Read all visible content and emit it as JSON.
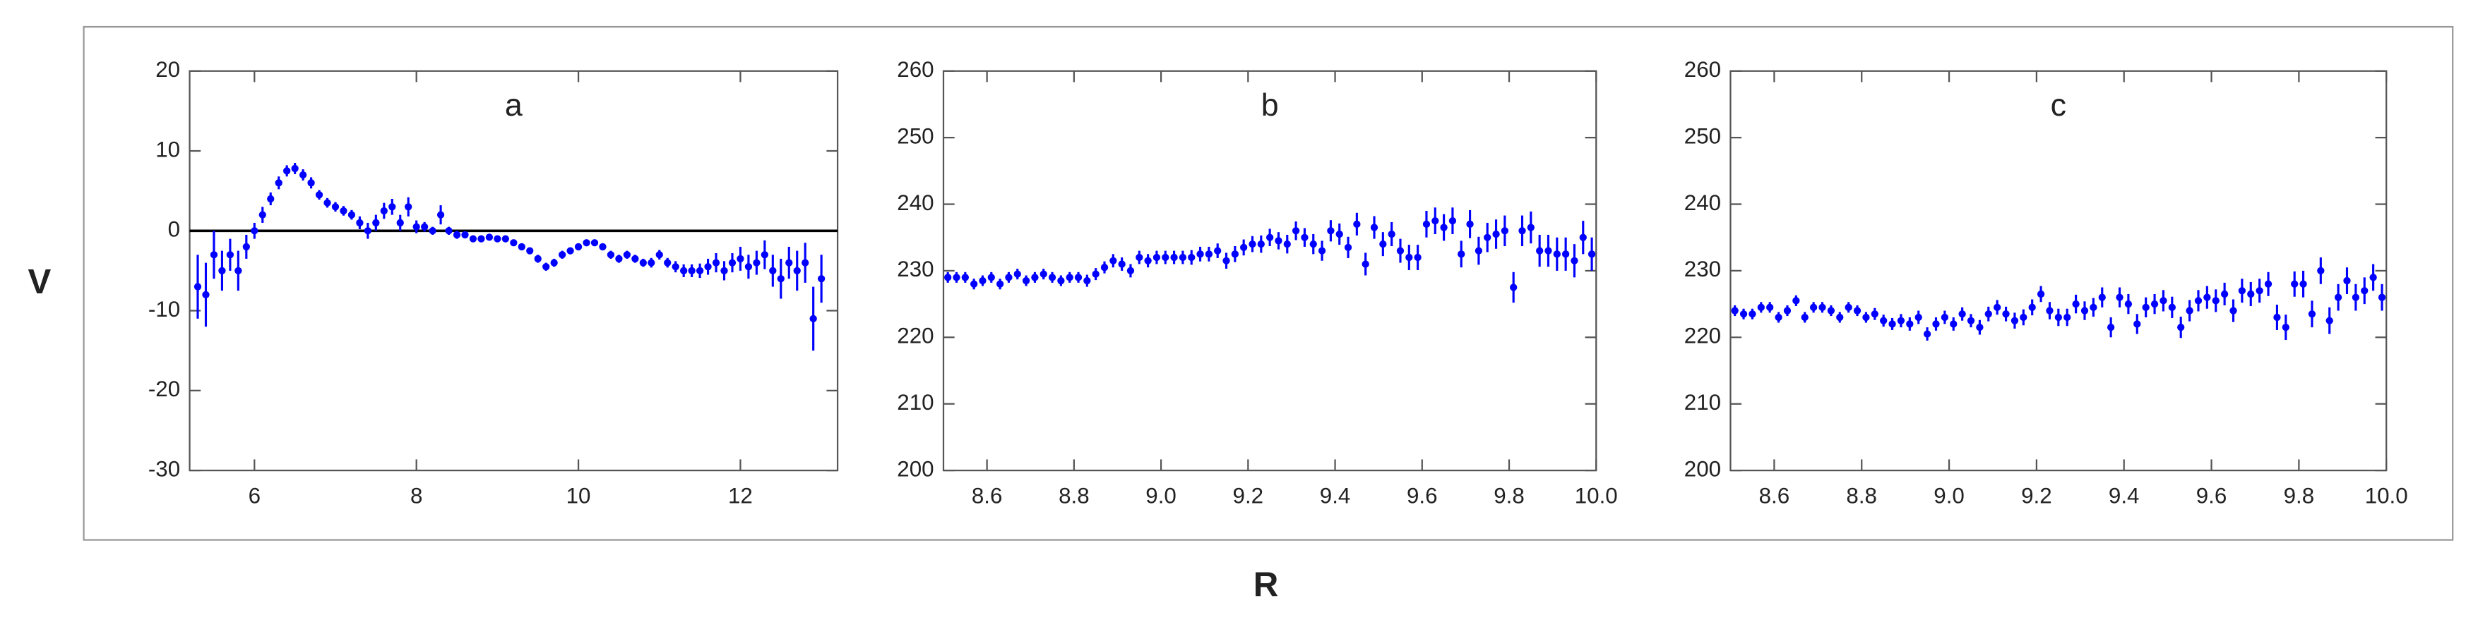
{
  "xlabel": "R",
  "ylabel": "V",
  "chart_data": [
    {
      "type": "scatter",
      "title": "a",
      "xlim": [
        5.2,
        13.2
      ],
      "ylim": [
        -30,
        20
      ],
      "xticks": [
        6,
        8,
        10,
        12
      ],
      "yticks": [
        -30,
        -20,
        -10,
        0,
        10,
        20
      ],
      "reference_line": 0,
      "reference_color": "#000000",
      "x": [
        5.3,
        5.4,
        5.5,
        5.6,
        5.7,
        5.8,
        5.9,
        6.0,
        6.1,
        6.2,
        6.3,
        6.4,
        6.5,
        6.6,
        6.7,
        6.8,
        6.9,
        7.0,
        7.1,
        7.2,
        7.3,
        7.4,
        7.5,
        7.6,
        7.7,
        7.8,
        7.9,
        8.0,
        8.1,
        8.2,
        8.3,
        8.4,
        8.5,
        8.6,
        8.7,
        8.8,
        8.9,
        9.0,
        9.1,
        9.2,
        9.3,
        9.4,
        9.5,
        9.6,
        9.7,
        9.8,
        9.9,
        10.0,
        10.1,
        10.2,
        10.3,
        10.4,
        10.5,
        10.6,
        10.7,
        10.8,
        10.9,
        11.0,
        11.1,
        11.2,
        11.3,
        11.4,
        11.5,
        11.6,
        11.7,
        11.8,
        11.9,
        12.0,
        12.1,
        12.2,
        12.3,
        12.4,
        12.5,
        12.6,
        12.7,
        12.8,
        12.9,
        13.0
      ],
      "series": [
        {
          "color": "#0000ff",
          "values": [
            -7,
            -8,
            -3,
            -5,
            -3,
            -5,
            -2,
            0,
            2,
            4,
            6,
            7.5,
            7.8,
            7,
            6,
            4.5,
            3.5,
            3,
            2.5,
            2,
            1,
            0,
            1,
            2.5,
            3,
            1,
            3,
            0.5,
            0.5,
            0,
            2,
            0,
            -0.5,
            -0.5,
            -1,
            -1,
            -0.8,
            -1,
            -1,
            -1.5,
            -2,
            -2.5,
            -3.5,
            -4.5,
            -4,
            -3,
            -2.5,
            -2,
            -1.5,
            -1.5,
            -2,
            -3,
            -3.5,
            -3,
            -3.5,
            -4,
            -4,
            -3,
            -4,
            -4.5,
            -5,
            -5,
            -5,
            -4.5,
            -4,
            -5,
            -4,
            -3.5,
            -4.5,
            -4,
            -3,
            -5,
            -6,
            -4,
            -5,
            -4,
            -11,
            -6
          ],
          "errors": [
            4,
            4,
            3,
            2.5,
            2,
            2.5,
            1.5,
            1,
            1,
            0.8,
            0.8,
            0.7,
            0.7,
            0.7,
            0.7,
            0.6,
            0.6,
            0.6,
            0.6,
            0.6,
            0.8,
            1,
            1,
            1,
            1,
            1,
            1.2,
            0.8,
            0.6,
            0.5,
            1.2,
            0.5,
            0.5,
            0.4,
            0.4,
            0.4,
            0.4,
            0.4,
            0.4,
            0.4,
            0.4,
            0.4,
            0.5,
            0.5,
            0.5,
            0.5,
            0.4,
            0.4,
            0.4,
            0.4,
            0.4,
            0.5,
            0.5,
            0.5,
            0.5,
            0.5,
            0.6,
            0.6,
            0.6,
            0.7,
            0.8,
            0.8,
            0.9,
            1,
            1.2,
            1.2,
            1.2,
            1.5,
            1.5,
            1.5,
            1.8,
            2,
            2.5,
            2,
            2.5,
            2.5,
            4,
            3
          ]
        }
      ]
    },
    {
      "type": "scatter",
      "title": "b",
      "xlim": [
        8.5,
        10.0
      ],
      "ylim": [
        200,
        260
      ],
      "xticks": [
        8.6,
        8.8,
        {
          "value": 9,
          "label": "9.0"
        },
        9.2,
        9.4,
        9.6,
        9.8,
        {
          "value": 10,
          "label": "10.0"
        }
      ],
      "yticks": [
        200,
        210,
        220,
        230,
        240,
        250,
        260
      ],
      "x": [
        8.51,
        8.53,
        8.55,
        8.57,
        8.59,
        8.61,
        8.63,
        8.65,
        8.67,
        8.69,
        8.71,
        8.73,
        8.75,
        8.77,
        8.79,
        8.81,
        8.83,
        8.85,
        8.87,
        8.89,
        8.91,
        8.93,
        8.95,
        8.97,
        8.99,
        9.01,
        9.03,
        9.05,
        9.07,
        9.09,
        9.11,
        9.13,
        9.15,
        9.17,
        9.19,
        9.21,
        9.23,
        9.25,
        9.27,
        9.29,
        9.31,
        9.33,
        9.35,
        9.37,
        9.39,
        9.41,
        9.43,
        9.45,
        9.47,
        9.49,
        9.51,
        9.53,
        9.55,
        9.57,
        9.59,
        9.61,
        9.63,
        9.65,
        9.67,
        9.69,
        9.71,
        9.73,
        9.75,
        9.77,
        9.79,
        9.81,
        9.83,
        9.85,
        9.87,
        9.89,
        9.91,
        9.93,
        9.95,
        9.97,
        9.99
      ],
      "series": [
        {
          "color": "#0000ff",
          "values": [
            229,
            229,
            229,
            228,
            228.5,
            229,
            228,
            229,
            229.5,
            228.5,
            229,
            229.5,
            229,
            228.5,
            229,
            229,
            228.5,
            229.5,
            230.5,
            231.5,
            231,
            230,
            232,
            231.5,
            232,
            232,
            232,
            232,
            232,
            232.5,
            232.5,
            233,
            231.5,
            232.5,
            233.5,
            234,
            234,
            235,
            234.5,
            234,
            236,
            235,
            234,
            233,
            236,
            235.5,
            233.5,
            237,
            231,
            236.5,
            234,
            235.5,
            233,
            232,
            232,
            237,
            237.5,
            236.5,
            237.5,
            232.5,
            237,
            233,
            235,
            235.5,
            236,
            227.5,
            236,
            236.5,
            233,
            233,
            232.5,
            232.5,
            231.5,
            235,
            232.5
          ],
          "errors": [
            0.8,
            0.8,
            0.8,
            0.8,
            0.8,
            0.8,
            0.8,
            0.8,
            0.8,
            0.8,
            0.8,
            0.8,
            0.8,
            0.8,
            0.8,
            0.8,
            0.9,
            0.9,
            0.9,
            1,
            1,
            1,
            1,
            1,
            1,
            1,
            1,
            1,
            1.1,
            1.1,
            1.1,
            1.1,
            1.2,
            1.2,
            1.2,
            1.2,
            1.3,
            1.3,
            1.3,
            1.4,
            1.4,
            1.4,
            1.5,
            1.5,
            1.6,
            1.6,
            1.6,
            1.7,
            1.7,
            1.7,
            1.8,
            1.8,
            1.8,
            1.9,
            1.9,
            2,
            2,
            2,
            2,
            2,
            2.1,
            2.1,
            2.2,
            2.2,
            2.3,
            2.3,
            2.3,
            2.4,
            2.4,
            2.4,
            2.5,
            2.5,
            2.5,
            2.5,
            2.5
          ]
        }
      ]
    },
    {
      "type": "scatter",
      "title": "c",
      "xlim": [
        8.5,
        10.0
      ],
      "ylim": [
        200,
        260
      ],
      "xticks": [
        8.6,
        8.8,
        {
          "value": 9,
          "label": "9.0"
        },
        9.2,
        9.4,
        9.6,
        9.8,
        {
          "value": 10,
          "label": "10.0"
        }
      ],
      "yticks": [
        200,
        210,
        220,
        230,
        240,
        250,
        260
      ],
      "x": [
        8.51,
        8.53,
        8.55,
        8.57,
        8.59,
        8.61,
        8.63,
        8.65,
        8.67,
        8.69,
        8.71,
        8.73,
        8.75,
        8.77,
        8.79,
        8.81,
        8.83,
        8.85,
        8.87,
        8.89,
        8.91,
        8.93,
        8.95,
        8.97,
        8.99,
        9.01,
        9.03,
        9.05,
        9.07,
        9.09,
        9.11,
        9.13,
        9.15,
        9.17,
        9.19,
        9.21,
        9.23,
        9.25,
        9.27,
        9.29,
        9.31,
        9.33,
        9.35,
        9.37,
        9.39,
        9.41,
        9.43,
        9.45,
        9.47,
        9.49,
        9.51,
        9.53,
        9.55,
        9.57,
        9.59,
        9.61,
        9.63,
        9.65,
        9.67,
        9.69,
        9.71,
        9.73,
        9.75,
        9.77,
        9.79,
        9.81,
        9.83,
        9.85,
        9.87,
        9.89,
        9.91,
        9.93,
        9.95,
        9.97,
        9.99
      ],
      "series": [
        {
          "color": "#0000ff",
          "values": [
            224,
            223.5,
            223.5,
            224.5,
            224.5,
            223,
            224,
            225.5,
            223,
            224.5,
            224.5,
            224,
            223,
            224.5,
            224,
            223,
            223.5,
            222.5,
            222,
            222.5,
            222,
            223,
            220.5,
            222,
            223,
            222,
            223.5,
            222.5,
            221.5,
            223.5,
            224.5,
            223.5,
            222.5,
            223,
            224.5,
            226.5,
            224,
            223,
            223,
            225,
            224,
            224.5,
            226,
            221.5,
            226,
            225,
            222,
            224.5,
            225,
            225.5,
            224.5,
            221.5,
            224,
            225.5,
            226,
            225.5,
            226.5,
            224,
            227,
            226.5,
            227,
            228,
            223,
            221.5,
            228,
            228,
            223.5,
            230,
            222.5,
            226,
            228.5,
            226,
            227,
            229,
            226
          ],
          "errors": [
            0.8,
            0.8,
            0.8,
            0.8,
            0.8,
            0.8,
            0.8,
            0.8,
            0.8,
            0.8,
            0.8,
            0.8,
            0.8,
            0.8,
            0.8,
            0.8,
            0.9,
            0.9,
            0.9,
            1,
            1,
            1,
            1,
            1,
            1,
            1,
            1,
            1,
            1.1,
            1.1,
            1.1,
            1.1,
            1.2,
            1.2,
            1.2,
            1.2,
            1.3,
            1.3,
            1.3,
            1.4,
            1.4,
            1.4,
            1.5,
            1.5,
            1.5,
            1.5,
            1.5,
            1.5,
            1.5,
            1.6,
            1.6,
            1.6,
            1.6,
            1.6,
            1.7,
            1.7,
            1.7,
            1.7,
            1.8,
            1.8,
            1.8,
            1.8,
            1.9,
            1.9,
            1.9,
            2,
            2,
            2,
            2,
            2,
            2,
            2,
            2,
            2,
            2
          ]
        }
      ]
    }
  ]
}
